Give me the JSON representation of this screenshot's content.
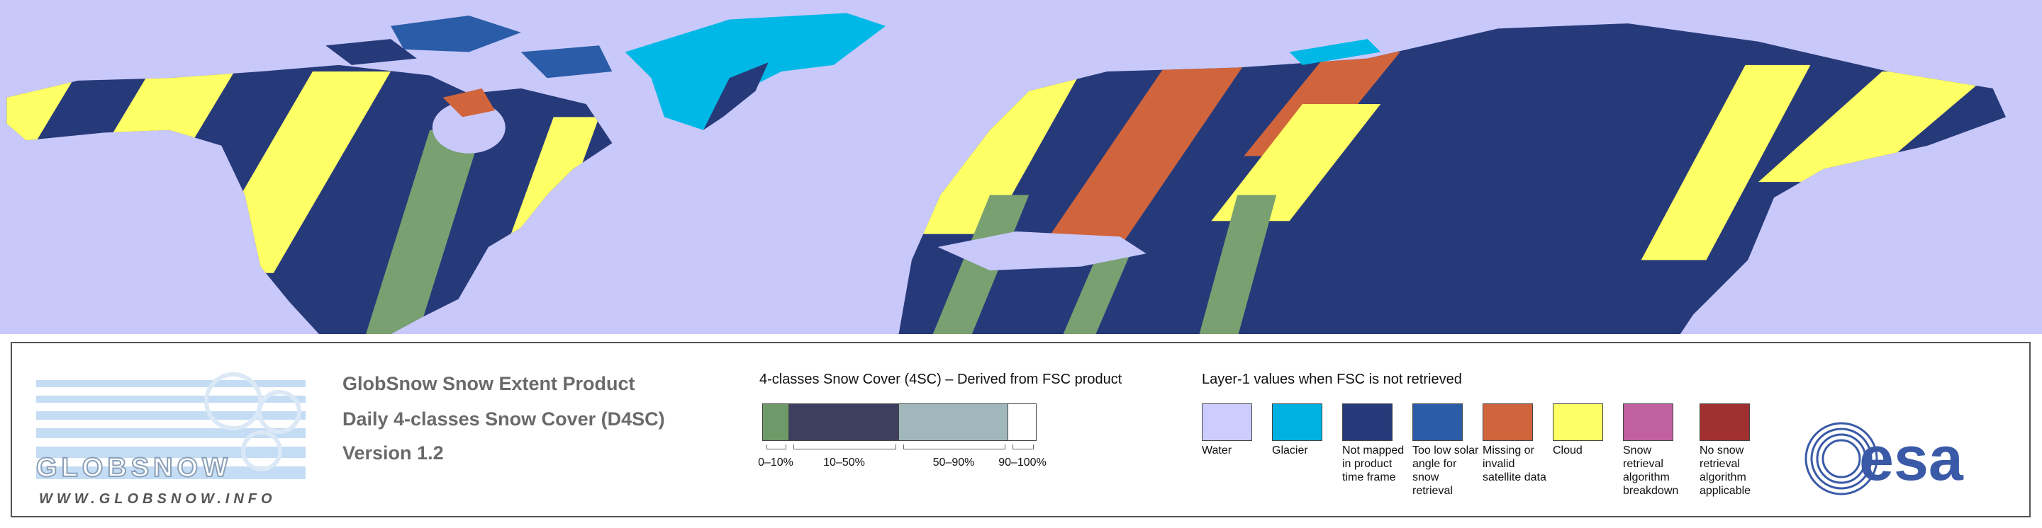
{
  "product": {
    "lines": [
      "GlobSnow Snow Extent Product",
      "Daily 4-classes Snow Cover (D4SC)",
      "Version 1.2"
    ]
  },
  "snow_cover_legend": {
    "title": "4-classes Snow Cover (4SC) – Derived from FSC product",
    "classes": [
      {
        "label": "0–10%",
        "color": "#6e9a6a"
      },
      {
        "label": "10–50%",
        "color": "#3e3e5e"
      },
      {
        "label": "50–90%",
        "color": "#a0b8bc"
      },
      {
        "label": "90–100%",
        "color": "#ffffff"
      }
    ]
  },
  "layer1_legend": {
    "title": "Layer-1 values when FSC is not retrieved",
    "items": [
      {
        "label": "Water",
        "color": "#ccccff"
      },
      {
        "label": "Glacier",
        "color": "#00b0e0"
      },
      {
        "label": "Not mapped in product time frame",
        "color": "#263a7a"
      },
      {
        "label": "Too low solar angle for snow retrieval",
        "color": "#2a5ca8"
      },
      {
        "label": "Missing or invalid satellite data",
        "color": "#d0643c"
      },
      {
        "label": "Cloud",
        "color": "#ffff66"
      },
      {
        "label": "Snow retrieval algorithm breakdown",
        "color": "#c060a0"
      },
      {
        "label": "No snow retrieval algorithm applicable",
        "color": "#a03030"
      }
    ]
  },
  "logos": {
    "globsnow": "GLOBSNOW",
    "url": "WWW.GLOBSNOW.INFO",
    "esa": "esa"
  }
}
